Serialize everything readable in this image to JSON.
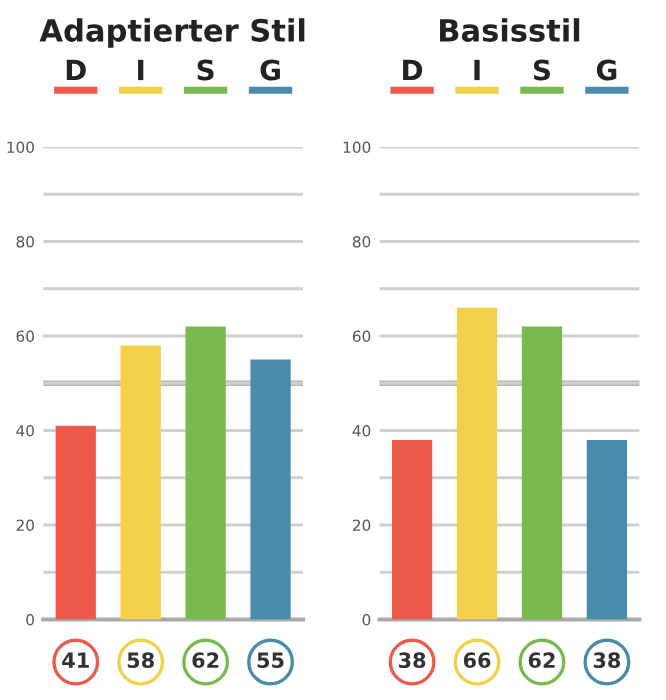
{
  "chart_data": [
    {
      "type": "bar",
      "title": "Adaptierter Stil",
      "categories": [
        "D",
        "I",
        "S",
        "G"
      ],
      "values": [
        41,
        58,
        62,
        55
      ],
      "colors": [
        "#ee5a4a",
        "#f2d04a",
        "#7ab850",
        "#4a8aab"
      ],
      "ylim": [
        0,
        100
      ],
      "yticks": [
        0,
        {
          "value": 10,
          "label": null
        },
        20,
        {
          "value": 30,
          "label": null
        },
        40,
        {
          "value": 50,
          "label": null
        },
        60,
        {
          "value": 70,
          "label": null
        },
        80,
        {
          "value": 90,
          "label": null
        },
        100
      ],
      "grid": "y",
      "data_labels": true,
      "ref_lines": [
        {
          "axis": "y",
          "value": 50,
          "color": "#b5b5b5"
        }
      ]
    },
    {
      "type": "bar",
      "title": "Basisstil",
      "categories": [
        "D",
        "I",
        "S",
        "G"
      ],
      "values": [
        38,
        66,
        62,
        38
      ],
      "colors": [
        "#ee5a4a",
        "#f2d04a",
        "#7ab850",
        "#4a8aab"
      ],
      "ylim": [
        0,
        100
      ],
      "yticks": [
        0,
        {
          "value": 10,
          "label": null
        },
        20,
        {
          "value": 30,
          "label": null
        },
        40,
        {
          "value": 50,
          "label": null
        },
        60,
        {
          "value": 70,
          "label": null
        },
        80,
        {
          "value": 90,
          "label": null
        },
        100
      ],
      "grid": "y",
      "data_labels": true,
      "ref_lines": [
        {
          "axis": "y",
          "value": 50,
          "color": "#b5b5b5"
        }
      ]
    }
  ]
}
